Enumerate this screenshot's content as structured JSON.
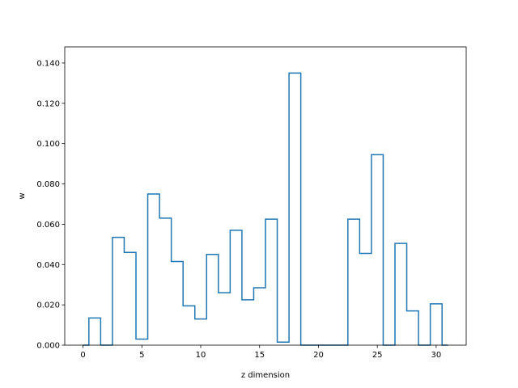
{
  "chart_data": {
    "type": "step",
    "xlabel": "z dimension",
    "ylabel": "w",
    "xlim": [
      -1.55,
      32.55
    ],
    "ylim": [
      0.0,
      0.148
    ],
    "xticks": [
      0,
      5,
      10,
      15,
      20,
      25,
      30
    ],
    "yticks": [
      0.0,
      0.02,
      0.04,
      0.06,
      0.08,
      0.1,
      0.12,
      0.14
    ],
    "ytick_labels": [
      "0.000",
      "0.020",
      "0.040",
      "0.060",
      "0.080",
      "0.100",
      "0.120",
      "0.140"
    ],
    "grid": false,
    "series_color": "#1f77b4",
    "bin_edges": [
      0,
      0.5,
      1.5,
      2.5,
      3.5,
      4.5,
      5.5,
      6.5,
      7.5,
      8.5,
      9.5,
      10.5,
      11.5,
      12.5,
      13.5,
      14.5,
      15.5,
      16.5,
      17.5,
      18.5,
      19.5,
      20.5,
      21.5,
      22.5,
      23.5,
      24.5,
      25.5,
      26.5,
      27.5,
      28.5,
      29.5,
      30.5,
      31
    ],
    "values": [
      0.0,
      0.0135,
      0.0,
      0.0535,
      0.046,
      0.003,
      0.075,
      0.063,
      0.0415,
      0.0195,
      0.013,
      0.045,
      0.026,
      0.057,
      0.0225,
      0.0285,
      0.0625,
      0.0015,
      0.135,
      0.0,
      0.0,
      0.0,
      0.0,
      0.0625,
      0.0455,
      0.0945,
      0.0,
      0.0505,
      0.017,
      0.0,
      0.0205,
      0.0
    ]
  }
}
